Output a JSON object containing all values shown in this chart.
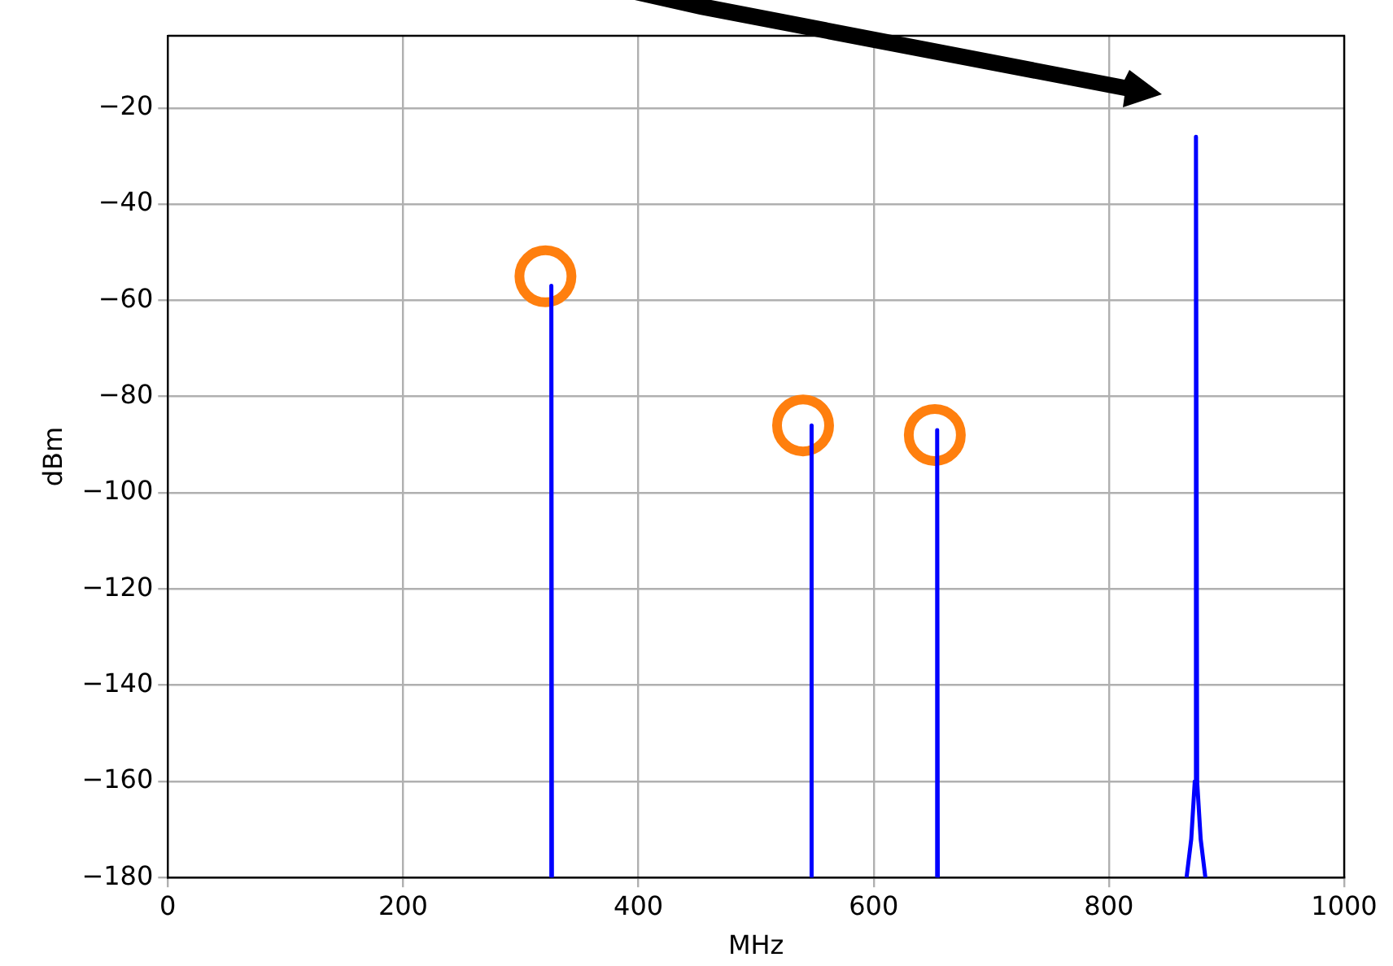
{
  "chart_data": {
    "type": "line",
    "xlabel": "MHz",
    "ylabel": "dBm",
    "xlim": [
      0,
      1000
    ],
    "xticks": [
      0,
      200,
      400,
      600,
      800,
      1000
    ],
    "ylim": [
      -180,
      -5
    ],
    "yticks": [
      {
        "value": -180,
        "label": "−180"
      },
      {
        "value": -160,
        "label": "−160"
      },
      {
        "value": -140,
        "label": "−140"
      },
      {
        "value": -120,
        "label": "−120"
      },
      {
        "value": -100,
        "label": "−100"
      },
      {
        "value": -80,
        "label": "−80"
      },
      {
        "value": -60,
        "label": "−60"
      },
      {
        "value": -40,
        "label": "−40"
      },
      {
        "value": -20,
        "label": "−20"
      }
    ],
    "grid": true,
    "legend": false,
    "series": [
      {
        "color": "#0000ff",
        "x": [
          325.5,
          326,
          326.5,
          436,
          546.5,
          547,
          547.5,
          600,
          653.5,
          654,
          654.5,
          760,
          866,
          870,
          873,
          874,
          875,
          878,
          882
        ],
        "values": [
          -180,
          -57,
          -180,
          null,
          -180,
          -86,
          -180,
          null,
          -180,
          -87,
          -180,
          null,
          -180,
          -172,
          -160,
          -26,
          -160,
          -172,
          -180
        ]
      },
      {
        "type": "scatter",
        "color": "#ff7f0e",
        "marker": "circle",
        "x": [
          321,
          540,
          652
        ],
        "values": [
          -55,
          -86,
          -88
        ]
      }
    ]
  }
}
